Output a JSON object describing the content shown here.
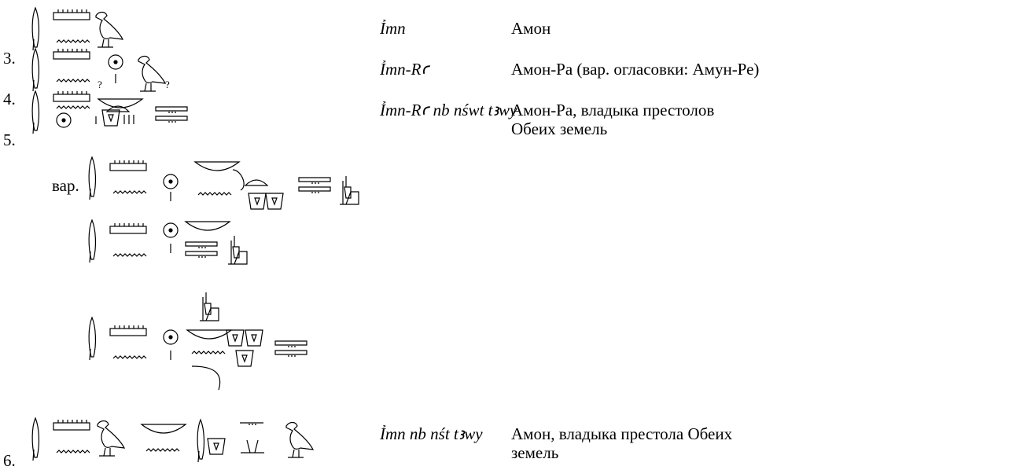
{
  "entries": [
    {
      "number": "3.",
      "transliteration": "Ỉmn",
      "translation": "Амон"
    },
    {
      "number": "4.",
      "transliteration": "Ỉmn-Rꜥ",
      "translation": "Амон-Ра (вар. огласовки: Амун-Ре)",
      "glyph_marks": [
        "?",
        "?"
      ]
    },
    {
      "number": "5.",
      "transliteration": "Ỉmn-Rꜥ nb nśwt tꜣwy",
      "translation": "Амон-Ра, владыка престолов Обеих земель",
      "variant_label": "вар."
    },
    {
      "number": "6.",
      "transliteration": "Ỉmn nb nśt tꜣwy",
      "translation": "Амон, владыка престола Обеих земель"
    }
  ]
}
